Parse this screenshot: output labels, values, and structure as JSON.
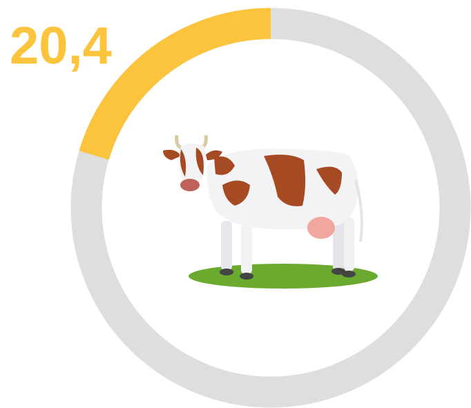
{
  "chart_data": {
    "type": "gauge",
    "values": [
      20.4
    ],
    "value_labels": [
      "20,4"
    ],
    "ylim": [
      0,
      100
    ],
    "color": "#fcc43d",
    "track_color": "#dedede"
  }
}
